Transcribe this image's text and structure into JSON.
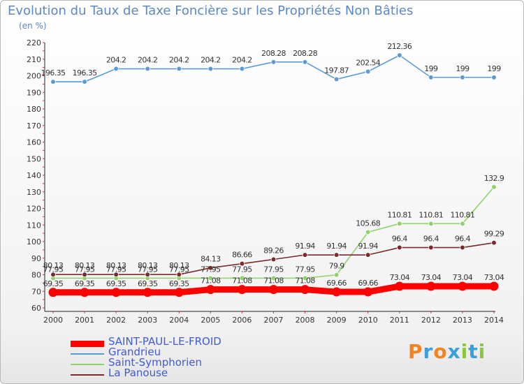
{
  "header": {
    "title": "Evolution du Taux de Taxe Foncière sur les Propriétés Non Bâties",
    "unit": "(en %)"
  },
  "brand": {
    "logo_text": "Proxiti",
    "colors": [
      "#f58220",
      "#3c9fd9",
      "#f58220",
      "#3c9fd9",
      "#8cc63f",
      "#3c9fd9",
      "#8cc63f"
    ]
  },
  "chart_data": {
    "type": "line",
    "title": "Evolution du Taux de Taxe Foncière sur les Propriétés Non Bâties",
    "ylabel": "(en %)",
    "xlabel": "",
    "x": [
      "2000",
      "2001",
      "2002",
      "2003",
      "2004",
      "2005",
      "2006",
      "2007",
      "2008",
      "2009",
      "2010",
      "2011",
      "2012",
      "2013",
      "2014"
    ],
    "yticks": [
      60,
      70,
      80,
      90,
      100,
      110,
      120,
      130,
      140,
      150,
      160,
      170,
      180,
      190,
      200,
      210,
      220
    ],
    "ylim": [
      60,
      220
    ],
    "grid": false,
    "legend_position": "bottom-left",
    "series": [
      {
        "name": "SAINT-PAUL-LE-FROID",
        "color": "#ff0000",
        "thick": true,
        "values": [
          69.35,
          69.35,
          69.35,
          69.35,
          69.35,
          71.08,
          71.08,
          71.08,
          71.08,
          69.66,
          69.66,
          73.04,
          73.04,
          73.04,
          73.04
        ],
        "labels": [
          "69.35",
          "69.35",
          "69.35",
          "69.35",
          "69.35",
          "71.08",
          "71.08",
          "71.08",
          "71.08",
          "69.66",
          "69.66",
          "73.04",
          "73.04",
          "73.04",
          "73.04"
        ]
      },
      {
        "name": "Grandrieu",
        "color": "#5b9bd5",
        "thick": false,
        "values": [
          196.35,
          196.35,
          204.2,
          204.2,
          204.2,
          204.2,
          204.2,
          208.28,
          208.28,
          197.87,
          202.54,
          212.36,
          199,
          199,
          199
        ],
        "labels": [
          "196.35",
          "196.35",
          "204.2",
          "204.2",
          "204.2",
          "204.2",
          "204.2",
          "208.28",
          "208.28",
          "197.87",
          "202.54",
          "212.36",
          "199",
          "199",
          "199"
        ]
      },
      {
        "name": "Saint-Symphorien",
        "color": "#8ed36a",
        "thick": false,
        "values": [
          77.95,
          77.95,
          77.95,
          77.95,
          77.95,
          77.95,
          77.95,
          77.95,
          77.95,
          79.9,
          105.68,
          110.81,
          110.81,
          110.81,
          132.9
        ],
        "labels": [
          "77.95",
          "77.95",
          "77.95",
          "77.95",
          "77.95",
          "77.95",
          "77.95",
          "77.95",
          "77.95",
          "79.9",
          "105.68",
          "110.81",
          "110.81",
          "110.81",
          "132.9"
        ]
      },
      {
        "name": "La Panouse",
        "color": "#7b2a2a",
        "thick": false,
        "values": [
          80.13,
          80.13,
          80.13,
          80.13,
          80.13,
          84.13,
          86.66,
          89.26,
          91.94,
          91.94,
          91.94,
          96.4,
          96.4,
          96.4,
          99.29
        ],
        "labels": [
          "80.13",
          "80.13",
          "80.13",
          "80.13",
          "80.13",
          "84.13",
          "86.66",
          "89.26",
          "91.94",
          "91.94",
          "91.94",
          "96.4",
          "96.4",
          "96.4",
          "99.29"
        ]
      }
    ]
  }
}
